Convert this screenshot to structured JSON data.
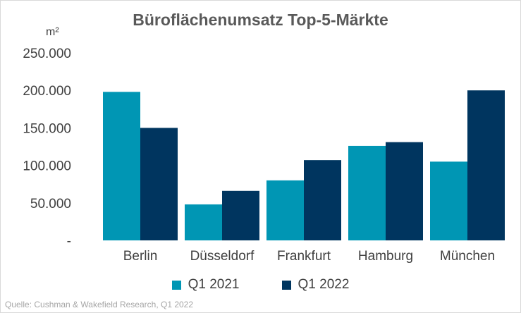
{
  "chart_data": {
    "type": "bar",
    "title": "Büroflächenumsatz Top-5-Märkte",
    "ylabel": "m²",
    "ylim": [
      0,
      250000
    ],
    "yticks": [
      {
        "value": 0,
        "label": "-"
      },
      {
        "value": 50000,
        "label": "50.000"
      },
      {
        "value": 100000,
        "label": "100.000"
      },
      {
        "value": 150000,
        "label": "150.000"
      },
      {
        "value": 200000,
        "label": "200.000"
      },
      {
        "value": 250000,
        "label": "250.000"
      }
    ],
    "categories": [
      "Berlin",
      "Düsseldorf",
      "Frankfurt",
      "Hamburg",
      "München"
    ],
    "series": [
      {
        "name": "Q1 2021",
        "color": "#0096b4",
        "values": [
          198000,
          48000,
          80000,
          126000,
          105000
        ]
      },
      {
        "name": "Q1 2022",
        "color": "#00355f",
        "values": [
          150000,
          66000,
          107000,
          131000,
          200000
        ]
      }
    ],
    "grid": false,
    "legend_position": "bottom"
  },
  "source": "Quelle: Cushman & Wakefield Research, Q1 2022"
}
